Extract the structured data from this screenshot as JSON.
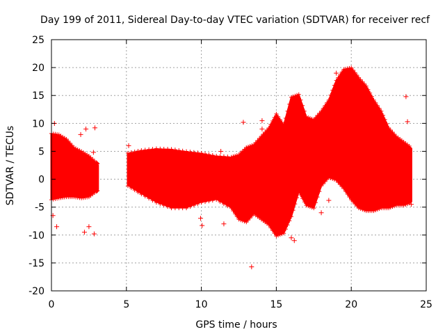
{
  "chart_data": {
    "type": "scatter",
    "title": "Day 199 of 2011, Sidereal Day-to-day VTEC variation (SDTVAR) for receiver recf",
    "xlabel": "GPS time / hours",
    "ylabel": "SDTVAR / TECUs",
    "xlim": [
      0,
      25
    ],
    "ylim": [
      -20,
      25
    ],
    "xticks": [
      0,
      5,
      10,
      15,
      20,
      25
    ],
    "yticks": [
      -20,
      -15,
      -10,
      -5,
      0,
      5,
      10,
      15,
      20,
      25
    ],
    "x_tick_labels": [
      "0",
      "5",
      "10",
      "15",
      "20",
      "25"
    ],
    "y_tick_labels": [
      "-20",
      "-15",
      "-10",
      "-5",
      "0",
      "5",
      "10",
      "15",
      "20",
      "25"
    ],
    "grid": true,
    "marker_color": "#ff0000",
    "marker": "+",
    "envelope": {
      "description": "dense band of points: upper/lower SDTVAR bounds vs GPS hour",
      "x": [
        0.0,
        0.5,
        1.0,
        1.5,
        2.0,
        2.5,
        3.0,
        3.1,
        5.1,
        6.0,
        7.0,
        8.0,
        9.0,
        10.0,
        11.0,
        12.0,
        12.5,
        13.0,
        13.5,
        14.0,
        14.5,
        15.0,
        15.5,
        16.0,
        16.5,
        17.0,
        17.5,
        18.0,
        18.5,
        19.0,
        19.5,
        20.0,
        20.5,
        21.0,
        21.5,
        22.0,
        22.5,
        23.0,
        23.5,
        24.0
      ],
      "upper": [
        8.0,
        7.8,
        7.0,
        5.5,
        4.8,
        4.0,
        2.8,
        2.5,
        4.5,
        5.0,
        5.3,
        5.2,
        4.8,
        4.5,
        4.0,
        3.8,
        4.2,
        5.5,
        6.0,
        7.5,
        9.0,
        11.5,
        9.5,
        14.5,
        15.0,
        11.0,
        10.5,
        12.0,
        14.0,
        17.5,
        19.5,
        19.8,
        18.0,
        16.5,
        14.0,
        12.0,
        9.0,
        7.5,
        6.5,
        5.5
      ],
      "lower": [
        -3.5,
        -3.2,
        -3.0,
        -3.0,
        -3.2,
        -3.0,
        -2.0,
        -1.8,
        -1.0,
        -2.5,
        -4.0,
        -5.0,
        -5.0,
        -4.0,
        -3.5,
        -5.0,
        -7.0,
        -7.5,
        -6.0,
        -7.0,
        -8.0,
        -10.0,
        -9.5,
        -6.5,
        -2.0,
        -4.5,
        -5.0,
        -1.0,
        0.5,
        0.0,
        -1.5,
        -3.5,
        -5.0,
        -5.5,
        -5.5,
        -5.0,
        -5.0,
        -4.5,
        -4.5,
        -4.0
      ]
    },
    "gaps": [
      [
        3.1,
        5.1
      ]
    ],
    "outliers": [
      {
        "x": 0.1,
        "y": -6.5
      },
      {
        "x": 0.2,
        "y": 10.0
      },
      {
        "x": 0.35,
        "y": -8.5
      },
      {
        "x": 1.95,
        "y": 8.0
      },
      {
        "x": 2.2,
        "y": -9.5
      },
      {
        "x": 2.3,
        "y": 9.0
      },
      {
        "x": 2.5,
        "y": -8.5
      },
      {
        "x": 2.8,
        "y": 4.8
      },
      {
        "x": 2.85,
        "y": -9.8
      },
      {
        "x": 2.9,
        "y": 9.2
      },
      {
        "x": 5.15,
        "y": 6.0
      },
      {
        "x": 9.95,
        "y": -7.0
      },
      {
        "x": 10.05,
        "y": -8.3
      },
      {
        "x": 11.3,
        "y": 5.0
      },
      {
        "x": 11.5,
        "y": -8.0
      },
      {
        "x": 12.0,
        "y": 3.0
      },
      {
        "x": 12.4,
        "y": 2.5
      },
      {
        "x": 12.65,
        "y": 4.5
      },
      {
        "x": 12.8,
        "y": 10.2
      },
      {
        "x": 12.95,
        "y": 3.0
      },
      {
        "x": 13.2,
        "y": 5.0
      },
      {
        "x": 13.35,
        "y": -15.7
      },
      {
        "x": 14.05,
        "y": 9.0
      },
      {
        "x": 14.05,
        "y": 10.5
      },
      {
        "x": 15.05,
        "y": 10.5
      },
      {
        "x": 16.0,
        "y": -10.5
      },
      {
        "x": 16.2,
        "y": -11.0
      },
      {
        "x": 18.0,
        "y": -6.0
      },
      {
        "x": 18.5,
        "y": -3.8
      },
      {
        "x": 19.0,
        "y": 19.0
      },
      {
        "x": 23.65,
        "y": 14.8
      },
      {
        "x": 23.75,
        "y": 10.3
      },
      {
        "x": 24.0,
        "y": -4.5
      }
    ]
  }
}
